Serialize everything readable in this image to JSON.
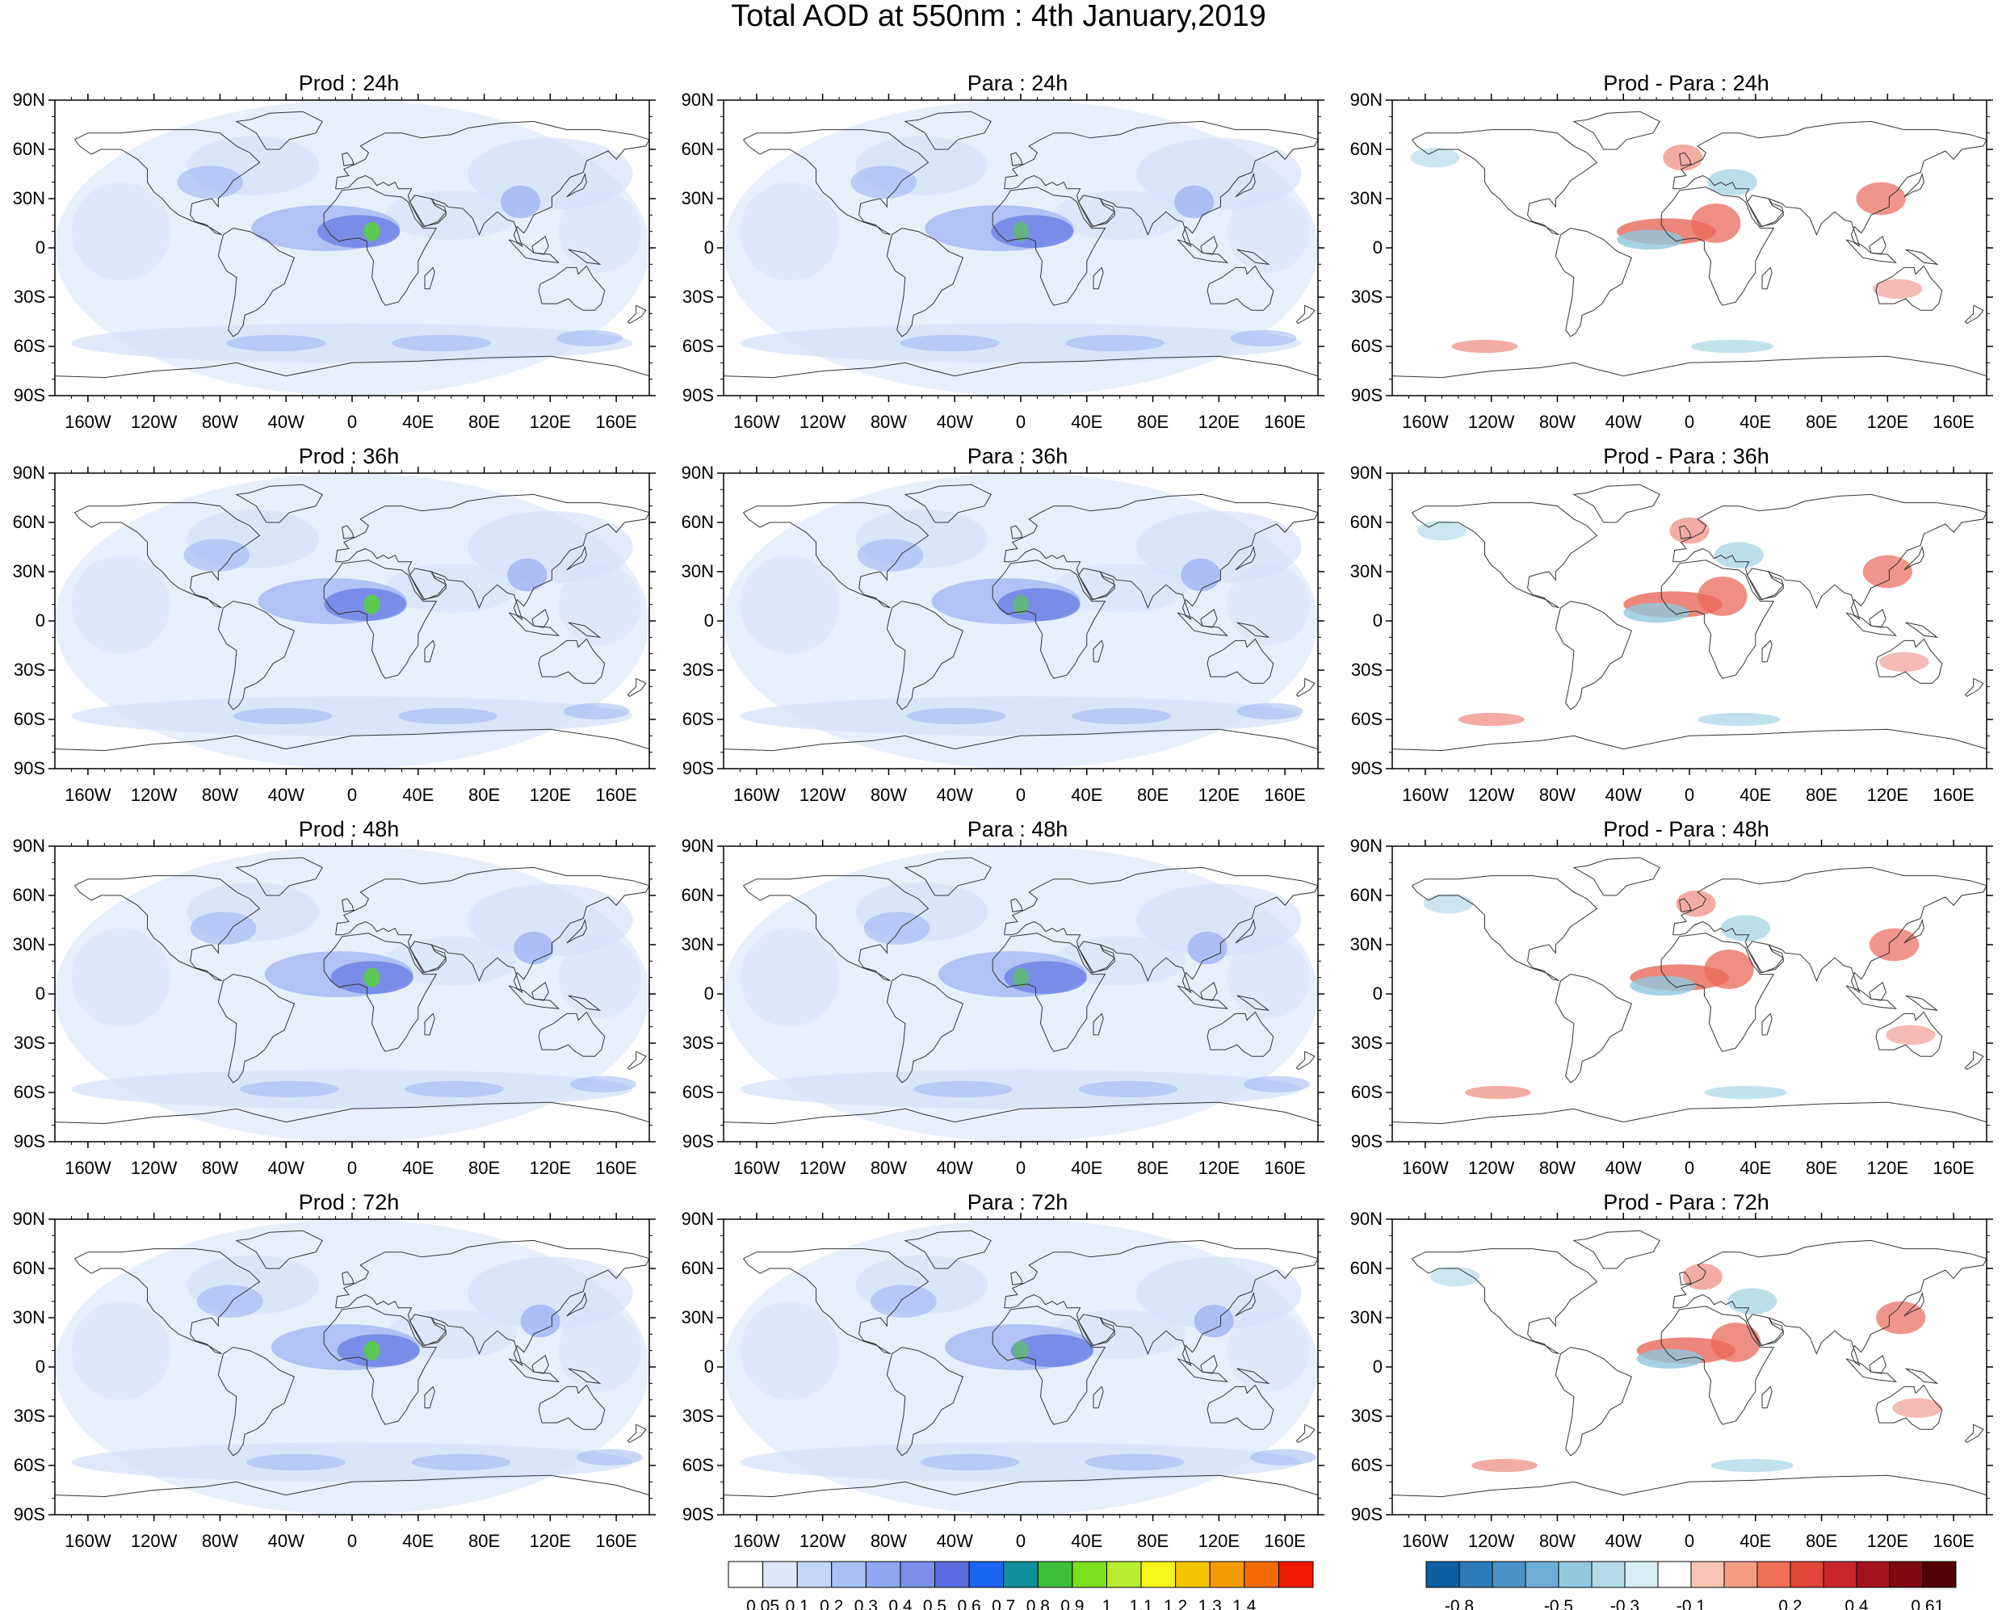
{
  "title": "Total AOD at 550nm : 4th January,2019",
  "lat_labels": [
    "90N",
    "60N",
    "30N",
    "0",
    "30S",
    "60S",
    "90S"
  ],
  "lon_labels": [
    "160W",
    "120W",
    "80W",
    "40W",
    "0",
    "40E",
    "80E",
    "120E",
    "160E"
  ],
  "panels": [
    {
      "title": "Prod : 24h",
      "kind": "aod",
      "lead": "24h"
    },
    {
      "title": "Para : 24h",
      "kind": "aod",
      "lead": "24h"
    },
    {
      "title": "Prod - Para : 24h",
      "kind": "diff",
      "lead": "24h"
    },
    {
      "title": "Prod : 36h",
      "kind": "aod",
      "lead": "36h"
    },
    {
      "title": "Para : 36h",
      "kind": "aod",
      "lead": "36h"
    },
    {
      "title": "Prod - Para : 36h",
      "kind": "diff",
      "lead": "36h"
    },
    {
      "title": "Prod : 48h",
      "kind": "aod",
      "lead": "48h"
    },
    {
      "title": "Para : 48h",
      "kind": "aod",
      "lead": "48h"
    },
    {
      "title": "Prod - Para : 48h",
      "kind": "diff",
      "lead": "48h"
    },
    {
      "title": "Prod : 72h",
      "kind": "aod",
      "lead": "72h"
    },
    {
      "title": "Para : 72h",
      "kind": "aod",
      "lead": "72h"
    },
    {
      "title": "Prod - Para : 72h",
      "kind": "diff",
      "lead": "72h"
    }
  ],
  "aod_colorbar": {
    "labels": [
      "0.05",
      "0.1",
      "0.2",
      "0.3",
      "0.4",
      "0.5",
      "0.6",
      "0.7",
      "0.8",
      "0.9",
      "1",
      "1.1",
      "1.2",
      "1.3",
      "1.4"
    ],
    "colors": [
      "#ffffff",
      "#dfe8fb",
      "#c3d5f8",
      "#a9c1f5",
      "#8ea7ef",
      "#7d8de9",
      "#5c6ce0",
      "#1b66f0",
      "#0f8f9a",
      "#3fbe3a",
      "#7fe020",
      "#b8ee30",
      "#f7f51a",
      "#f5c400",
      "#f59a00",
      "#f26a00",
      "#f01a00"
    ]
  },
  "diff_colorbar": {
    "labels": [
      "-0.8",
      "-0.5",
      "-0.3",
      "-0.1",
      "0.2",
      "0.4",
      "0.6",
      "1"
    ],
    "colors": [
      "#0c5fa0",
      "#2d7cb9",
      "#4b93c7",
      "#6eaed5",
      "#93c7df",
      "#b5dbe8",
      "#d8eef4",
      "#ffffff",
      "#f9c4b6",
      "#f59a83",
      "#ef6f58",
      "#e2473a",
      "#c8262a",
      "#a5131c",
      "#7e0913",
      "#520007"
    ]
  },
  "colors": {
    "aod_light": "#d6e1fa",
    "aod_mid": "#9db4f2",
    "aod_dark": "#6a7fe4",
    "dust_green": "#58d234",
    "diff_red": "#e9685a",
    "diff_blue": "#8ec8de",
    "coast": "#333333"
  }
}
